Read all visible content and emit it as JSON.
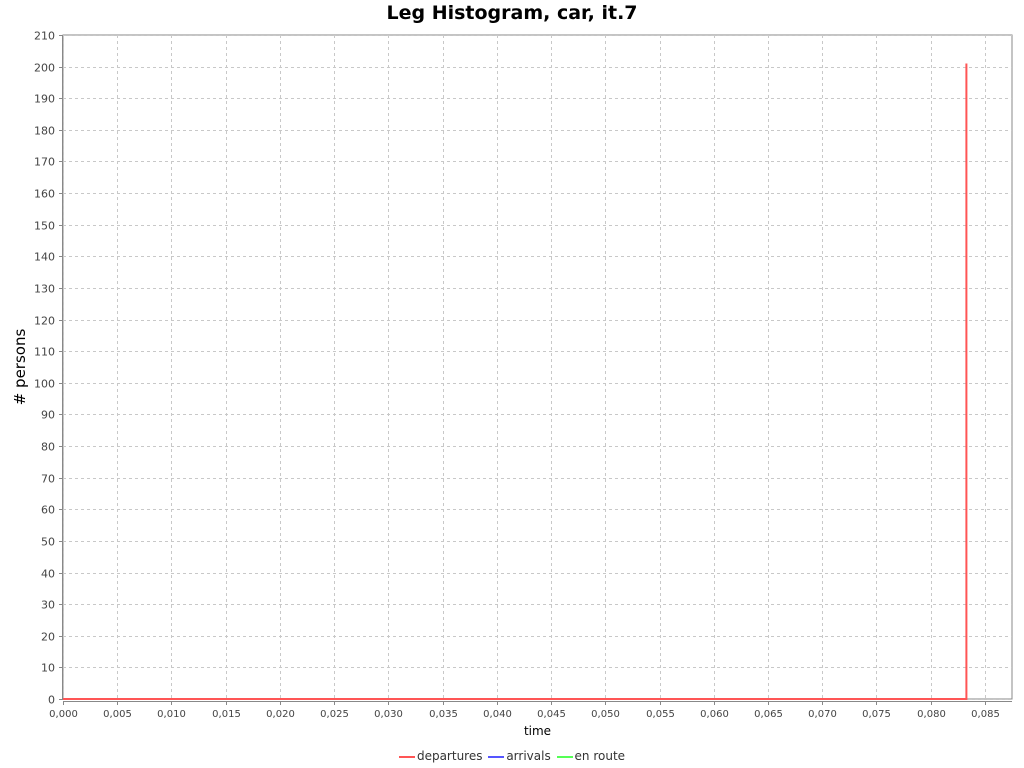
{
  "chart_data": {
    "type": "line",
    "title": "Leg Histogram, car, it.7",
    "xlabel": "time",
    "ylabel": "# persons",
    "xlim": [
      0.0,
      0.0875
    ],
    "ylim": [
      0,
      210
    ],
    "x_ticks": [
      "0,000",
      "0,005",
      "0,010",
      "0,015",
      "0,020",
      "0,025",
      "0,030",
      "0,035",
      "0,040",
      "0,045",
      "0,050",
      "0,055",
      "0,060",
      "0,065",
      "0,070",
      "0,075",
      "0,080",
      "0,085"
    ],
    "y_ticks": [
      "0",
      "10",
      "20",
      "30",
      "40",
      "50",
      "60",
      "70",
      "80",
      "90",
      "100",
      "110",
      "120",
      "130",
      "140",
      "150",
      "160",
      "170",
      "180",
      "190",
      "200",
      "210"
    ],
    "grid": true,
    "legend_position": "bottom",
    "series": [
      {
        "name": "departures",
        "color": "#ff5555",
        "x": [
          0.0,
          0.0833,
          0.0833,
          0.0833,
          0.0833
        ],
        "y": [
          0,
          0,
          201,
          201,
          0
        ]
      },
      {
        "name": "arrivals",
        "color": "#5555ff",
        "x": [
          0.0,
          0.0833
        ],
        "y": [
          0,
          0
        ]
      },
      {
        "name": "en route",
        "color": "#55ff55",
        "x": [
          0.0,
          0.0833
        ],
        "y": [
          0,
          0
        ]
      }
    ]
  }
}
